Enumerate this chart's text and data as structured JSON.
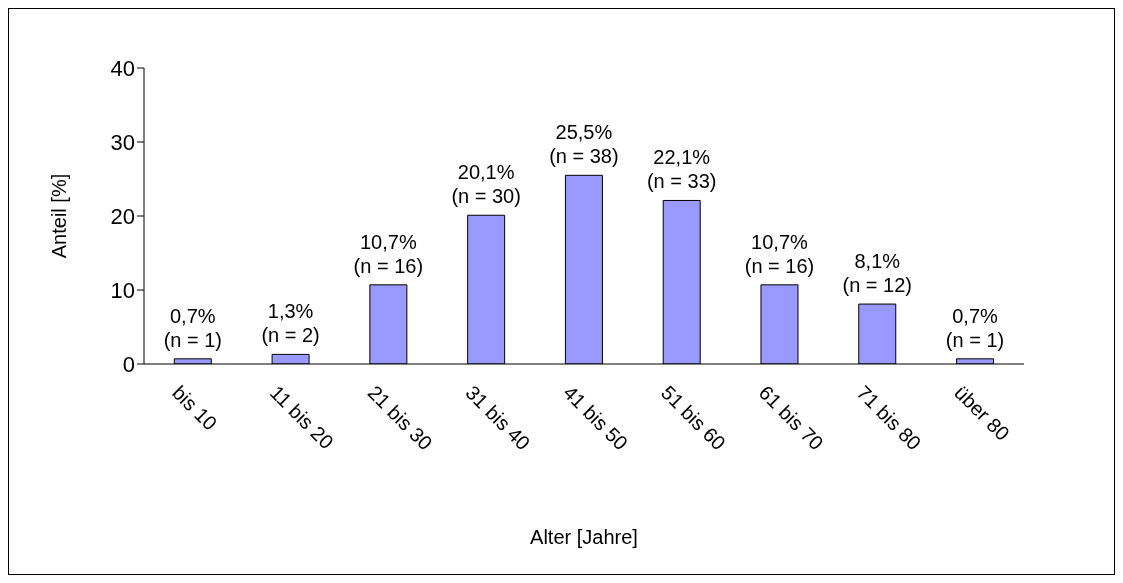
{
  "chart_data": {
    "type": "bar",
    "xlabel": "Alter [Jahre]",
    "ylabel": "Anteil [%]",
    "categories": [
      "bis 10",
      "11 bis 20",
      "21 bis 30",
      "31 bis 40",
      "41 bis 50",
      "51 bis 60",
      "61 bis 70",
      "71 bis 80",
      "über 80"
    ],
    "values": [
      0.7,
      1.3,
      10.7,
      20.1,
      25.5,
      22.1,
      10.7,
      8.1,
      0.7
    ],
    "value_labels": [
      "0,7%\n(n = 1)",
      "1,3%\n(n = 2)",
      "10,7%\n(n = 16)",
      "20,1%\n(n = 30)",
      "25,5%\n(n = 38)",
      "22,1%\n(n = 33)",
      "10,7%\n(n = 16)",
      "8,1%\n(n = 12)",
      "0,7%\n(n = 1)"
    ],
    "color": "#9999ff",
    "ylim": [
      0,
      40
    ],
    "yticks": [
      0,
      10,
      20,
      30,
      40
    ]
  }
}
